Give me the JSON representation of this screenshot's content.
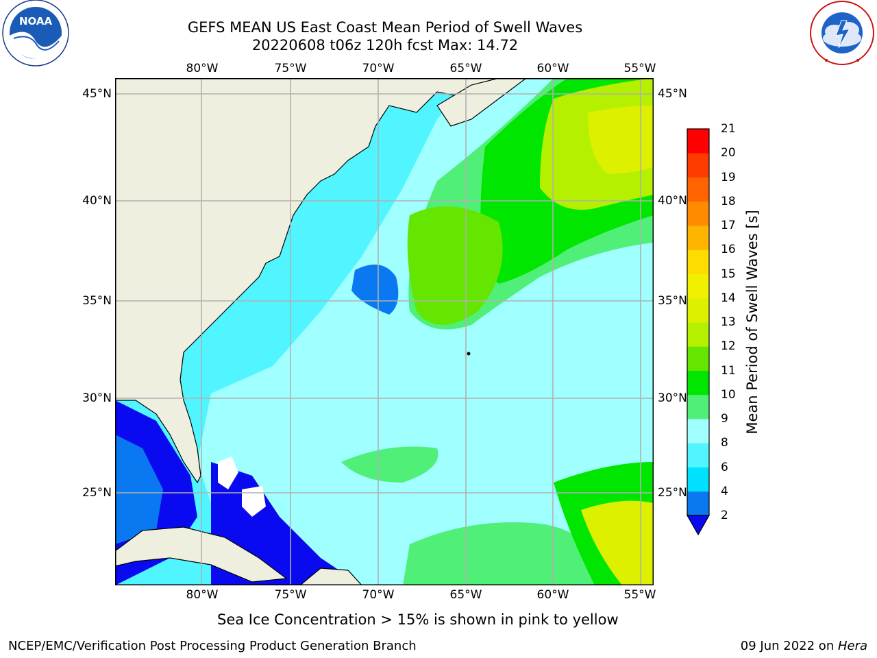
{
  "header": {
    "title_line1": "GEFS MEAN US East Coast Mean Period of Swell Waves",
    "title_line2": "20220608 t06z 120h fcst   Max: 14.72"
  },
  "logos": {
    "left": {
      "icon": "noaa-logo",
      "text": "NOAA",
      "ring_text": "NATIONAL OCEANIC AND ATMOSPHERIC ADMINISTRATION · U.S. DEPARTMENT OF COMMERCE"
    },
    "right": {
      "icon": "nws-logo",
      "ring_text": "NATIONAL WEATHER SERVICE"
    }
  },
  "map": {
    "lon_ticks": [
      "80°W",
      "75°W",
      "70°W",
      "65°W",
      "60°W",
      "55°W"
    ],
    "lat_ticks": [
      "45°N",
      "40°N",
      "35°N",
      "30°N",
      "25°N"
    ],
    "lon_values": [
      -80,
      -75,
      -70,
      -65,
      -60,
      -55
    ],
    "lat_values": [
      45,
      40,
      35,
      30,
      25
    ],
    "lon_range": [
      -85,
      -54.2
    ],
    "lat_range": [
      20.3,
      46
    ],
    "grid": true,
    "colors": {
      "land": "#efefdf",
      "grid": "#b0b0b0",
      "coast": "#000000"
    }
  },
  "colorbar": {
    "label": "Mean Period of Swell Waves [s]",
    "ticks": [
      "2",
      "4",
      "6",
      "8",
      "9",
      "10",
      "11",
      "12",
      "13",
      "14",
      "15",
      "16",
      "17",
      "18",
      "19",
      "20",
      "21"
    ],
    "colors": [
      "#0a0af0",
      "#0a78f0",
      "#00e0ff",
      "#50f5ff",
      "#a0ffff",
      "#50f078",
      "#00e600",
      "#64e600",
      "#b4f000",
      "#dcf000",
      "#f0f000",
      "#ffdc00",
      "#ffb400",
      "#ff8c00",
      "#ff6400",
      "#ff3c00",
      "#ff0000"
    ],
    "extend_min_color": "#0a0af0"
  },
  "notes": {
    "sea_ice": "Sea Ice Concentration > 15% is shown in pink to yellow"
  },
  "footer": {
    "left": "NCEP/EMC/Verification Post Processing Product Generation Branch",
    "date": "09 Jun 2022 on ",
    "machine": "Hera"
  }
}
